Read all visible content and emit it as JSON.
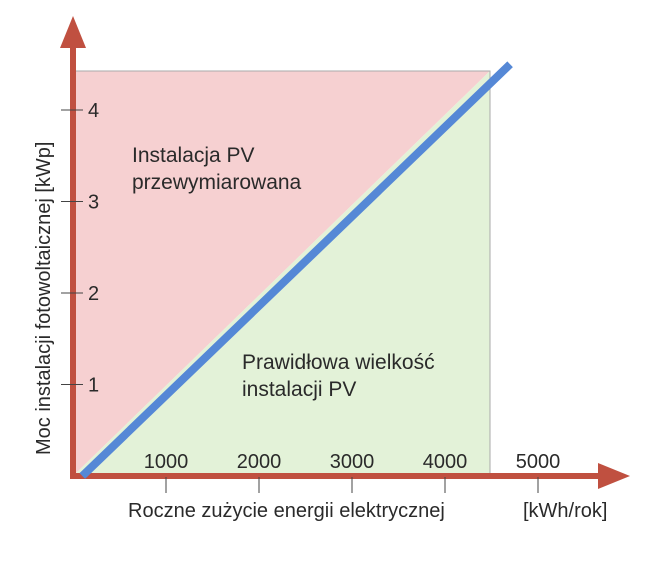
{
  "chart_data": {
    "type": "area",
    "xlabel": "Roczne zużycie energii elektrycznej",
    "xunit": "[kWh/rok]",
    "ylabel": "Moc instalacji fotowoltaicznej [kWp]",
    "x_ticks": [
      "1000",
      "2000",
      "3000",
      "4000",
      "5000"
    ],
    "y_ticks": [
      "1",
      "2",
      "3",
      "4"
    ],
    "xlim": [
      0,
      5600
    ],
    "ylim": [
      0,
      4.5
    ],
    "grid": false,
    "line": {
      "x": [
        100,
        4700
      ],
      "y": [
        0.0,
        4.5
      ]
    },
    "regions": [
      {
        "label_lines": [
          "Instalacja PV",
          "przewymiarowana"
        ],
        "color": "#f6d0d1"
      },
      {
        "label_lines": [
          "Prawidłowa wielkość",
          "instalacji PV"
        ],
        "color": "#e3f2d8"
      }
    ],
    "colors": {
      "line": "#5588d6",
      "axes": "#c05040",
      "frame": "#aaaaaa"
    }
  }
}
